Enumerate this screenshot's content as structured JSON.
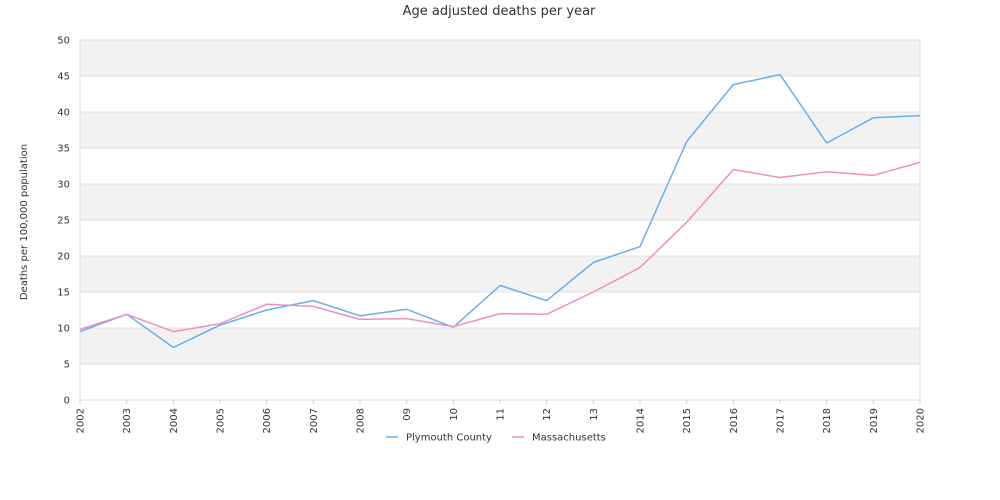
{
  "chart_data": {
    "type": "line",
    "title": "Age adjusted deaths per year",
    "xlabel": "",
    "ylabel": "Deaths per 100,000 population",
    "categories": [
      "2002",
      "2003",
      "2004",
      "2005",
      "2006",
      "2007",
      "2008",
      "09",
      "10",
      "11",
      "12",
      "13",
      "2014",
      "2015",
      "2016",
      "2017",
      "2018",
      "2019",
      "2020"
    ],
    "ylim": [
      0,
      50
    ],
    "yticks": [
      0,
      5,
      10,
      15,
      20,
      25,
      30,
      35,
      40,
      45,
      50
    ],
    "grid": "horizontal alternating bands",
    "legend_position": "bottom-center",
    "series": [
      {
        "name": "Plymouth County",
        "color": "#6aaeea",
        "values": [
          9.5,
          11.9,
          7.3,
          10.4,
          12.5,
          13.8,
          11.7,
          12.6,
          10.1,
          15.9,
          13.8,
          19.1,
          21.3,
          35.9,
          43.8,
          45.2,
          35.7,
          39.2,
          39.5
        ]
      },
      {
        "name": "Massachusetts",
        "color": "#ee8fc4",
        "values": [
          9.8,
          11.9,
          9.5,
          10.6,
          13.3,
          13.0,
          11.2,
          11.3,
          10.2,
          12.0,
          11.9,
          15.0,
          18.4,
          24.7,
          32.0,
          30.9,
          31.7,
          31.2,
          33.0
        ]
      }
    ]
  }
}
